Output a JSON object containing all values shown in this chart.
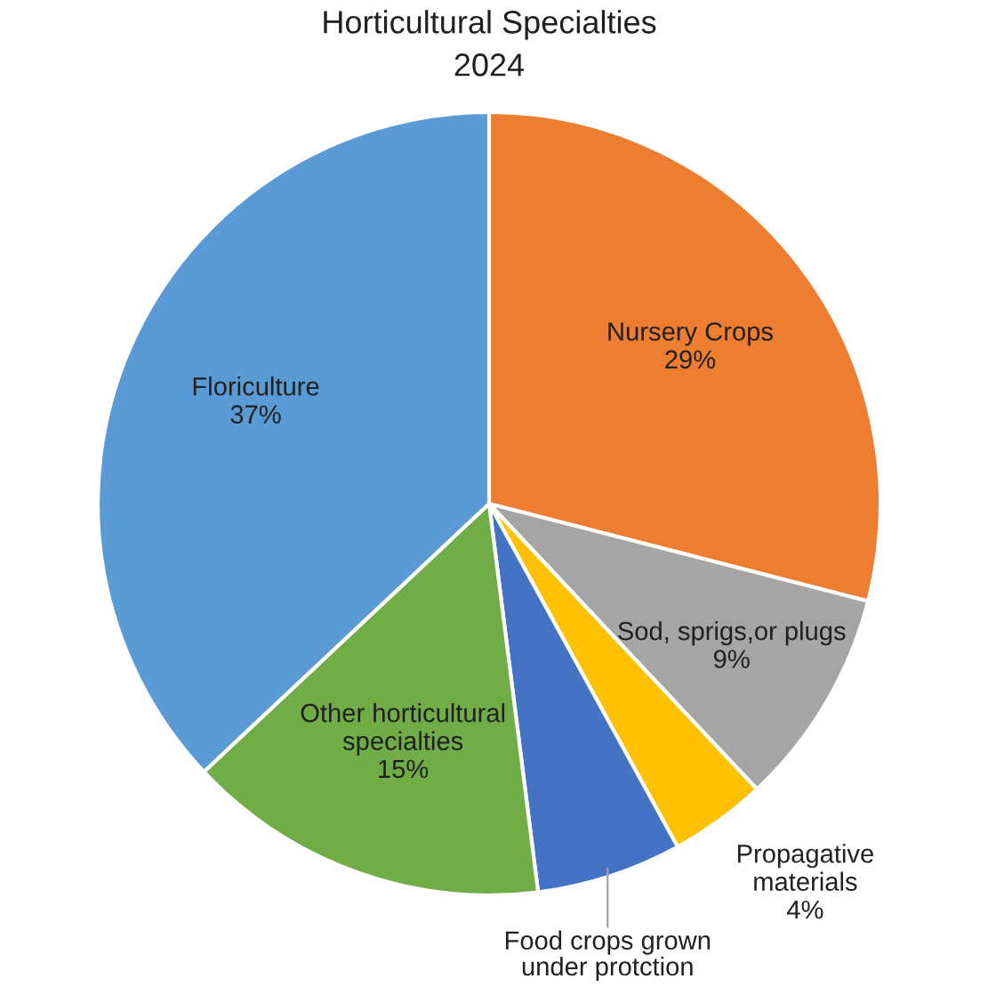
{
  "chart_data": {
    "type": "pie",
    "title": "Horticultural Specialties",
    "subtitle": "2024",
    "categories": [
      "Nursery Crops",
      "Sod, sprigs,or plugs",
      "Propagative materials",
      "Food crops grown under protction",
      "Other horticultural specialties",
      "Floriculture"
    ],
    "values": [
      29,
      9,
      4,
      6,
      15,
      37
    ],
    "value_labels": [
      "29%",
      "9%",
      "4%",
      null,
      "15%",
      "37%"
    ],
    "colors": [
      "#ed7d31",
      "#a5a5a5",
      "#ffc000",
      "#4472c4",
      "#70ad47",
      "#5b9bd5"
    ]
  }
}
